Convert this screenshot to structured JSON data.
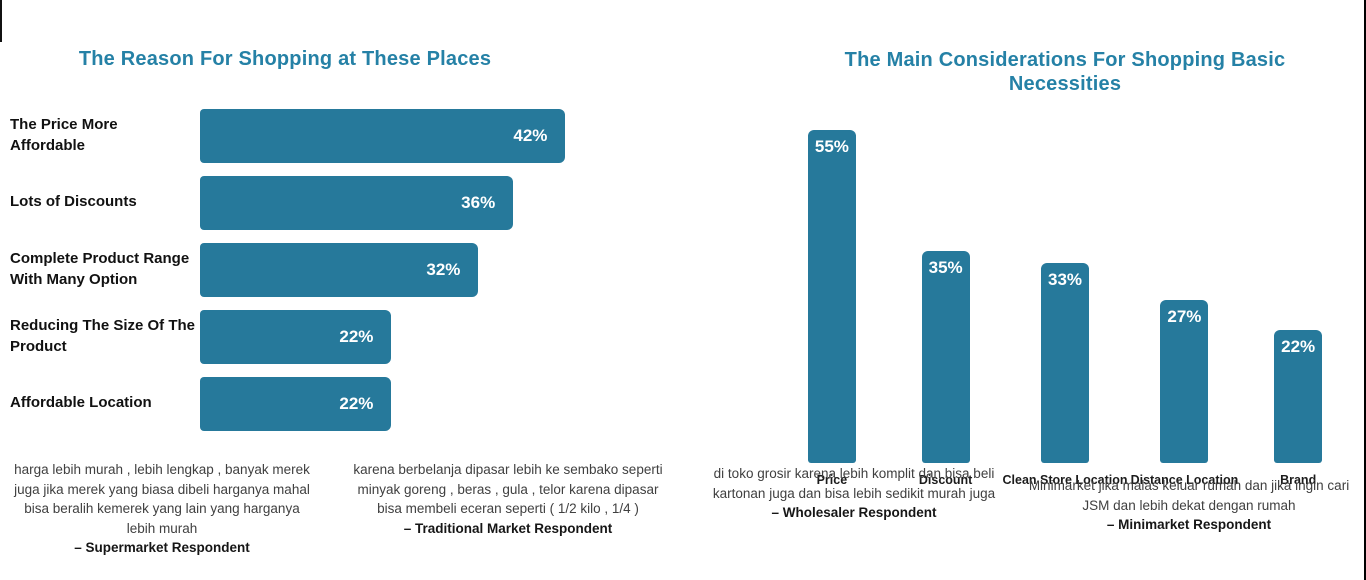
{
  "colors": {
    "bar": "#26799B",
    "title": "#2581A6",
    "value_label": "#ffffff",
    "category_label": "#111111",
    "quote_text": "#404040",
    "quote_attribution": "#161616"
  },
  "chart_data": [
    {
      "type": "bar",
      "orientation": "horizontal",
      "title": "The Reason For Shopping at These Places",
      "categories": [
        "The Price More Affordable",
        "Lots of Discounts",
        "Complete Product Range With Many Option",
        "Reducing The Size Of The Product",
        "Affordable Location"
      ],
      "values": [
        42,
        36,
        32,
        22,
        22
      ],
      "value_suffix": "%",
      "xlim": [
        0,
        47
      ],
      "grid": false,
      "value_label_position": "inside-end"
    },
    {
      "type": "bar",
      "orientation": "vertical",
      "title": "The Main Considerations For Shopping Basic Necessities",
      "categories": [
        "Price",
        "Discount",
        "Clean Store Location",
        "Distance Location",
        "Brand"
      ],
      "values": [
        55,
        35,
        33,
        27,
        22
      ],
      "value_suffix": "%",
      "ylim": [
        0,
        58
      ],
      "grid": false,
      "value_label_position": "inside-top"
    }
  ],
  "quotes": [
    {
      "text": "harga lebih murah , lebih lengkap , banyak merek juga jika merek yang biasa dibeli harganya mahal bisa beralih kemerek yang lain yang harganya lebih murah",
      "attribution": "– Supermarket Respondent"
    },
    {
      "text": "karena berbelanja dipasar lebih ke sembako seperti minyak goreng , beras , gula , telor karena dipasar bisa membeli eceran seperti ( 1/2 kilo , 1/4 )",
      "attribution": "– Traditional Market Respondent"
    },
    {
      "text": "di toko grosir karena lebih komplit dan bisa beli kartonan juga dan bisa lebih sedikit murah juga",
      "attribution": "– Wholesaler Respondent"
    },
    {
      "text": "Minimarket jika malas keluar rumah dan jika ingin cari JSM dan lebih dekat dengan rumah",
      "attribution": "– Minimarket Respondent"
    }
  ]
}
